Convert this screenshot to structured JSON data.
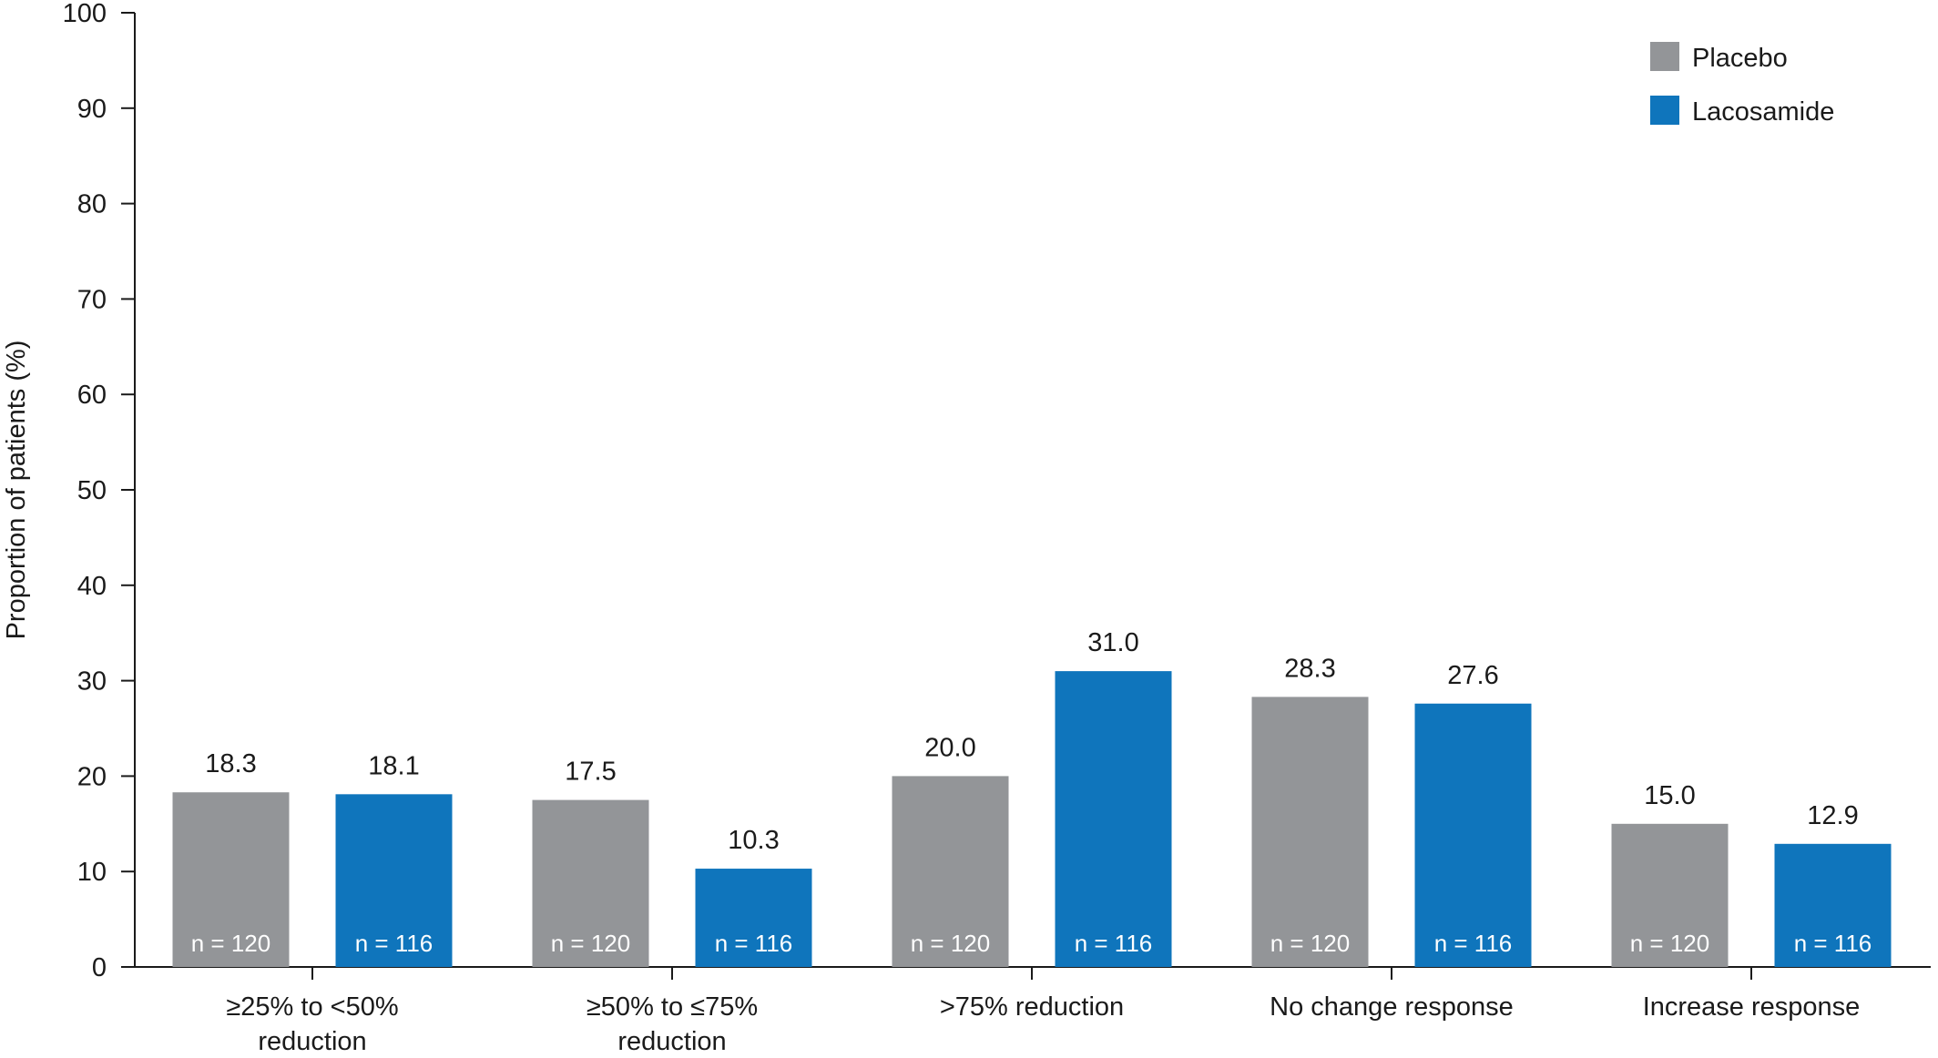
{
  "chart_data": {
    "type": "bar",
    "ylabel": "Proportion of patients (%)",
    "ylim": [
      0,
      100
    ],
    "yticks": [
      "0",
      "10",
      "20",
      "30",
      "40",
      "50",
      "60",
      "70",
      "80",
      "90",
      "100"
    ],
    "grid": false,
    "legend_position": "top-right",
    "categories": [
      [
        "≥25% to <50%",
        "reduction"
      ],
      [
        "≥50% to ≤75%",
        "reduction"
      ],
      [
        ">75% reduction"
      ],
      [
        "No change response"
      ],
      [
        "Increase response"
      ]
    ],
    "series": [
      {
        "name": "Placebo",
        "color": "#939598",
        "values": [
          18.3,
          17.5,
          20.0,
          28.3,
          15.0
        ],
        "value_labels": [
          "18.3",
          "17.5",
          "20.0",
          "28.3",
          "15.0"
        ],
        "n_label": "n = 120"
      },
      {
        "name": "Lacosamide",
        "color": "#0f75bc",
        "values": [
          18.1,
          10.3,
          31.0,
          27.6,
          12.9
        ],
        "value_labels": [
          "18.1",
          "10.3",
          "31.0",
          "27.6",
          "12.9"
        ],
        "n_label": "n = 116"
      }
    ]
  }
}
